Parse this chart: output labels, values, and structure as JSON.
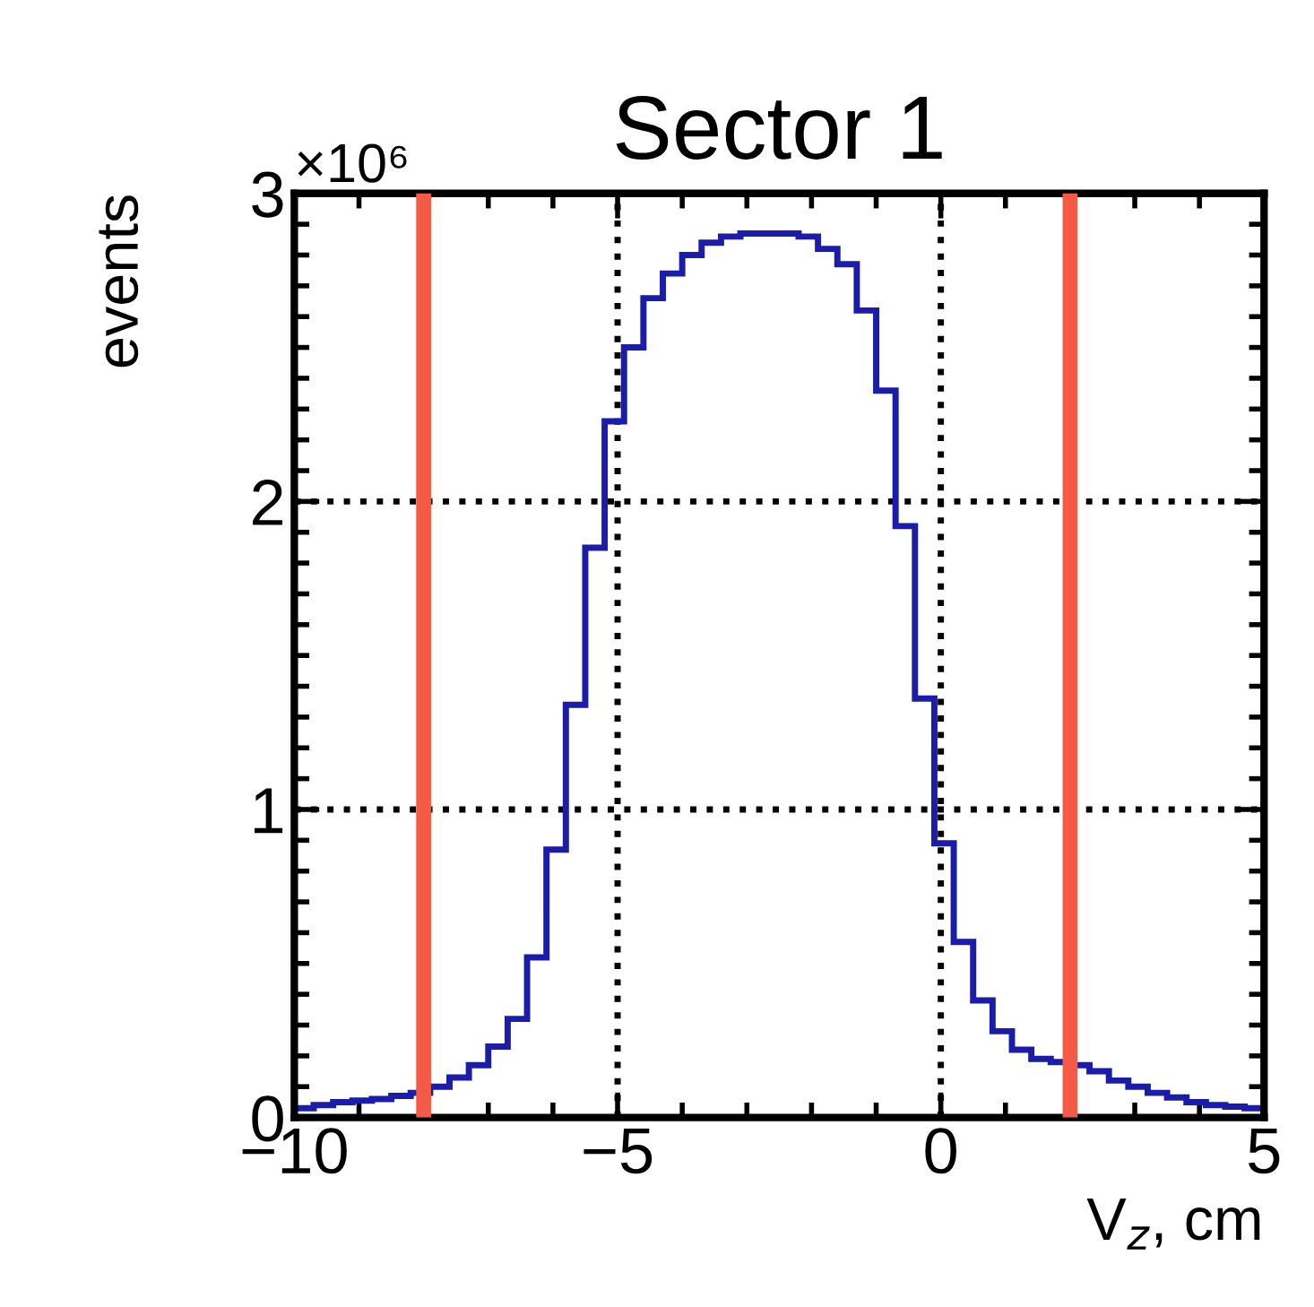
{
  "chart_data": {
    "type": "histogram",
    "title": "Sector 1",
    "xlabel": "V$_{z}$, cm",
    "ylabel": "events",
    "bins": [
      -10,
      -9.7,
      -9.4,
      -9.1,
      -8.8,
      -8.5,
      -8.2,
      -7.9,
      -7.6,
      -7.3,
      -7.0,
      -6.7,
      -6.4,
      -6.1,
      -5.8,
      -5.5,
      -5.2,
      -4.9,
      -4.6,
      -4.3,
      -4.0,
      -3.7,
      -3.4,
      -3.1,
      -2.8,
      -2.5,
      -2.2,
      -1.9,
      -1.6,
      -1.3,
      -1.0,
      -0.7,
      -0.4,
      -0.1,
      0.2,
      0.5,
      0.8,
      1.1,
      1.4,
      1.7,
      2.0,
      2.3,
      2.6,
      2.9,
      3.2,
      3.5,
      3.8,
      4.1,
      4.4,
      4.7,
      5.0
    ],
    "values": [
      0.03,
      0.04,
      0.05,
      0.055,
      0.06,
      0.07,
      0.08,
      0.1,
      0.13,
      0.17,
      0.23,
      0.32,
      0.52,
      0.87,
      1.34,
      1.85,
      2.26,
      2.5,
      2.66,
      2.74,
      2.8,
      2.84,
      2.86,
      2.87,
      2.87,
      2.87,
      2.86,
      2.82,
      2.77,
      2.62,
      2.36,
      1.92,
      1.36,
      0.89,
      0.57,
      0.38,
      0.28,
      0.22,
      0.19,
      0.18,
      0.17,
      0.15,
      0.12,
      0.1,
      0.08,
      0.065,
      0.05,
      0.04,
      0.035,
      0.03
    ],
    "color": "#1c1caa",
    "xlim": [
      -10,
      5
    ],
    "xticks": [
      {
        "value": -10,
        "label": "−10"
      },
      {
        "value": -5,
        "label": "−5"
      },
      0,
      5
    ],
    "ylim": [
      0,
      3
    ],
    "yticks": [
      0,
      1,
      2,
      3
    ],
    "annotations": [
      "×10⁶"
    ],
    "ref_lines": [
      {
        "axis": "x",
        "value": -8,
        "label": null,
        "color": "#f45a45"
      },
      {
        "axis": "x",
        "value": 2,
        "label": null,
        "color": "#f45a45"
      }
    ],
    "grid": true,
    "line_style": "dotted"
  }
}
